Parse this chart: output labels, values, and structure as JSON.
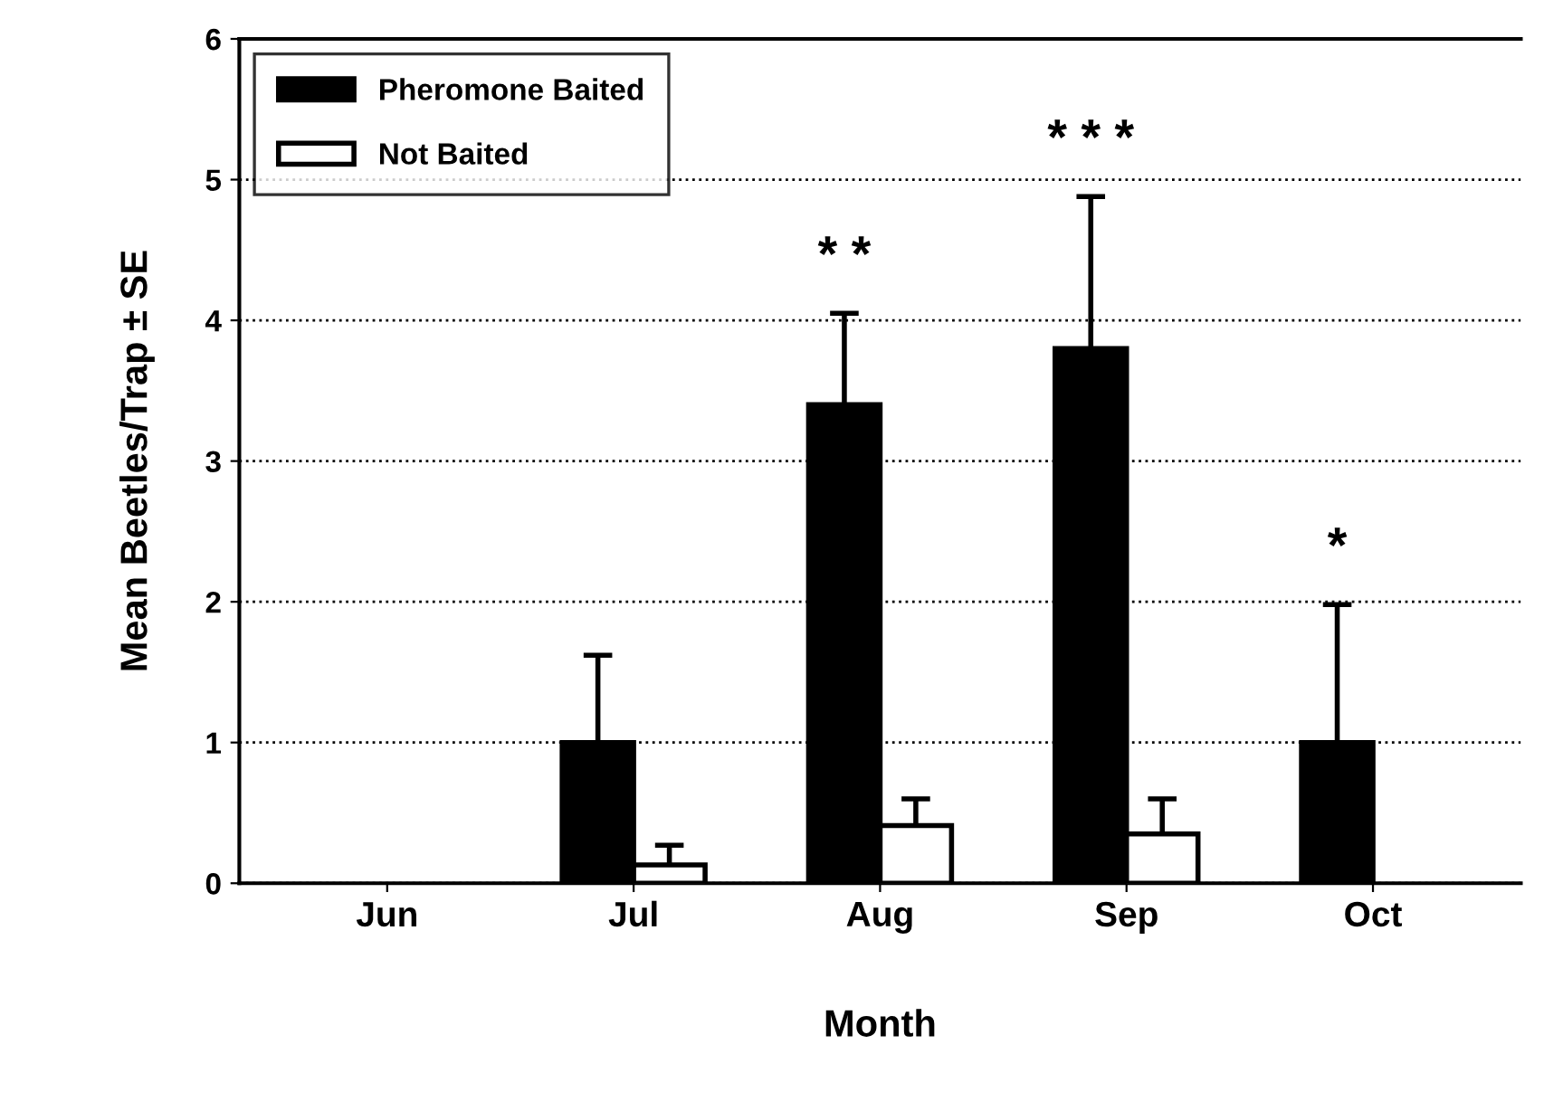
{
  "chart_data": {
    "type": "bar",
    "xlabel": "Month",
    "ylabel": "Mean Beetles/Trap ± SE",
    "categories": [
      "Jun",
      "Jul",
      "Aug",
      "Sep",
      "Oct"
    ],
    "series": [
      {
        "name": "Pheromone Baited",
        "color": "#000000",
        "values": [
          null,
          1.0,
          3.4,
          3.8,
          1.0
        ],
        "errors": [
          null,
          [
            1.0,
            1.62
          ],
          [
            3.4,
            4.05
          ],
          [
            3.8,
            4.88
          ],
          [
            1.0,
            1.98
          ]
        ]
      },
      {
        "name": "Not Baited",
        "color": "#ffffff",
        "values": [
          null,
          0.13,
          0.41,
          0.35,
          null
        ],
        "errors": [
          null,
          [
            0.13,
            0.27
          ],
          [
            0.41,
            0.6
          ],
          [
            0.35,
            0.6
          ],
          null
        ]
      }
    ],
    "ylim": [
      0,
      6
    ],
    "yticks": [
      0,
      1,
      2,
      3,
      4,
      5,
      6
    ],
    "grid": "y",
    "legend": "top left",
    "annotations": [
      "* *",
      "* * *",
      "*"
    ]
  }
}
